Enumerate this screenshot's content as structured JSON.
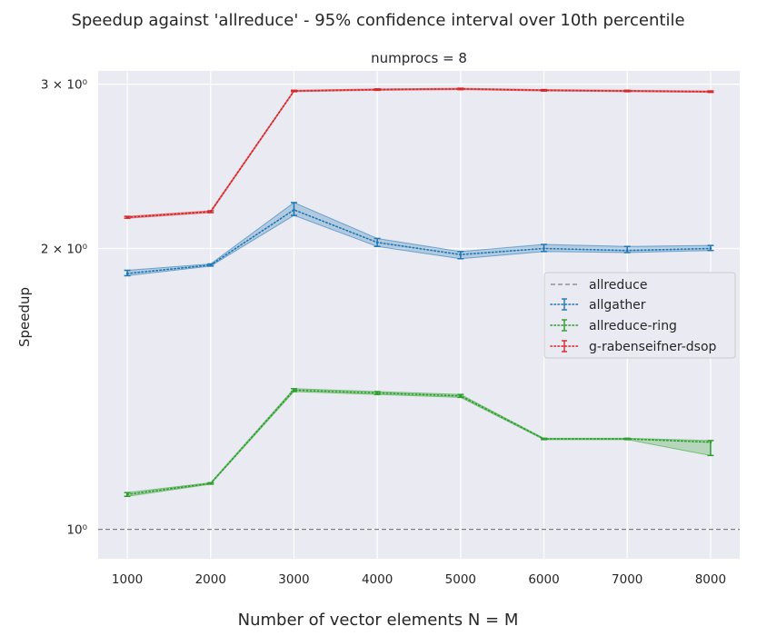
{
  "chart_data": {
    "type": "line",
    "title": "Speedup against 'allreduce' - 95% confidence interval over 10th percentile",
    "subtitle": "numprocs = 8",
    "xlabel": "Number of vector elements N = M",
    "ylabel": "Speedup",
    "yscale": "log",
    "x": [
      1000,
      2000,
      3000,
      4000,
      5000,
      6000,
      7000,
      8000
    ],
    "xlim": [
      650,
      8350
    ],
    "ylim": [
      0.93,
      3.1
    ],
    "y_ticks": [
      {
        "value": 1,
        "label": "10⁰"
      },
      {
        "value": 2,
        "label": "2 × 10⁰"
      },
      {
        "value": 3,
        "label": "3 × 10⁰"
      }
    ],
    "grid": true,
    "legend_position": "center-right",
    "reference_line": {
      "name": "allreduce",
      "y": 1.0,
      "color": "#808080",
      "style": "dashed"
    },
    "series": [
      {
        "name": "allgather",
        "color": "#1f77b4",
        "values": [
          1.88,
          1.92,
          2.2,
          2.03,
          1.97,
          2.0,
          1.99,
          2.0
        ],
        "lower": [
          1.87,
          1.915,
          2.17,
          2.01,
          1.95,
          1.985,
          1.98,
          1.99
        ],
        "upper": [
          1.895,
          1.925,
          2.24,
          2.05,
          1.985,
          2.02,
          2.01,
          2.015
        ]
      },
      {
        "name": "allreduce-ring",
        "color": "#2ca02c",
        "values": [
          1.09,
          1.12,
          1.41,
          1.4,
          1.39,
          1.25,
          1.25,
          1.24
        ],
        "lower": [
          1.085,
          1.118,
          1.405,
          1.395,
          1.385,
          1.248,
          1.248,
          1.2
        ],
        "upper": [
          1.095,
          1.122,
          1.415,
          1.405,
          1.395,
          1.252,
          1.252,
          1.245
        ]
      },
      {
        "name": "g-rabenseifner-dsop",
        "color": "#d62728",
        "values": [
          2.16,
          2.19,
          2.95,
          2.96,
          2.965,
          2.955,
          2.95,
          2.945
        ],
        "lower": [
          2.155,
          2.185,
          2.945,
          2.955,
          2.96,
          2.95,
          2.945,
          2.94
        ],
        "upper": [
          2.165,
          2.195,
          2.955,
          2.965,
          2.97,
          2.96,
          2.955,
          2.95
        ]
      }
    ]
  }
}
